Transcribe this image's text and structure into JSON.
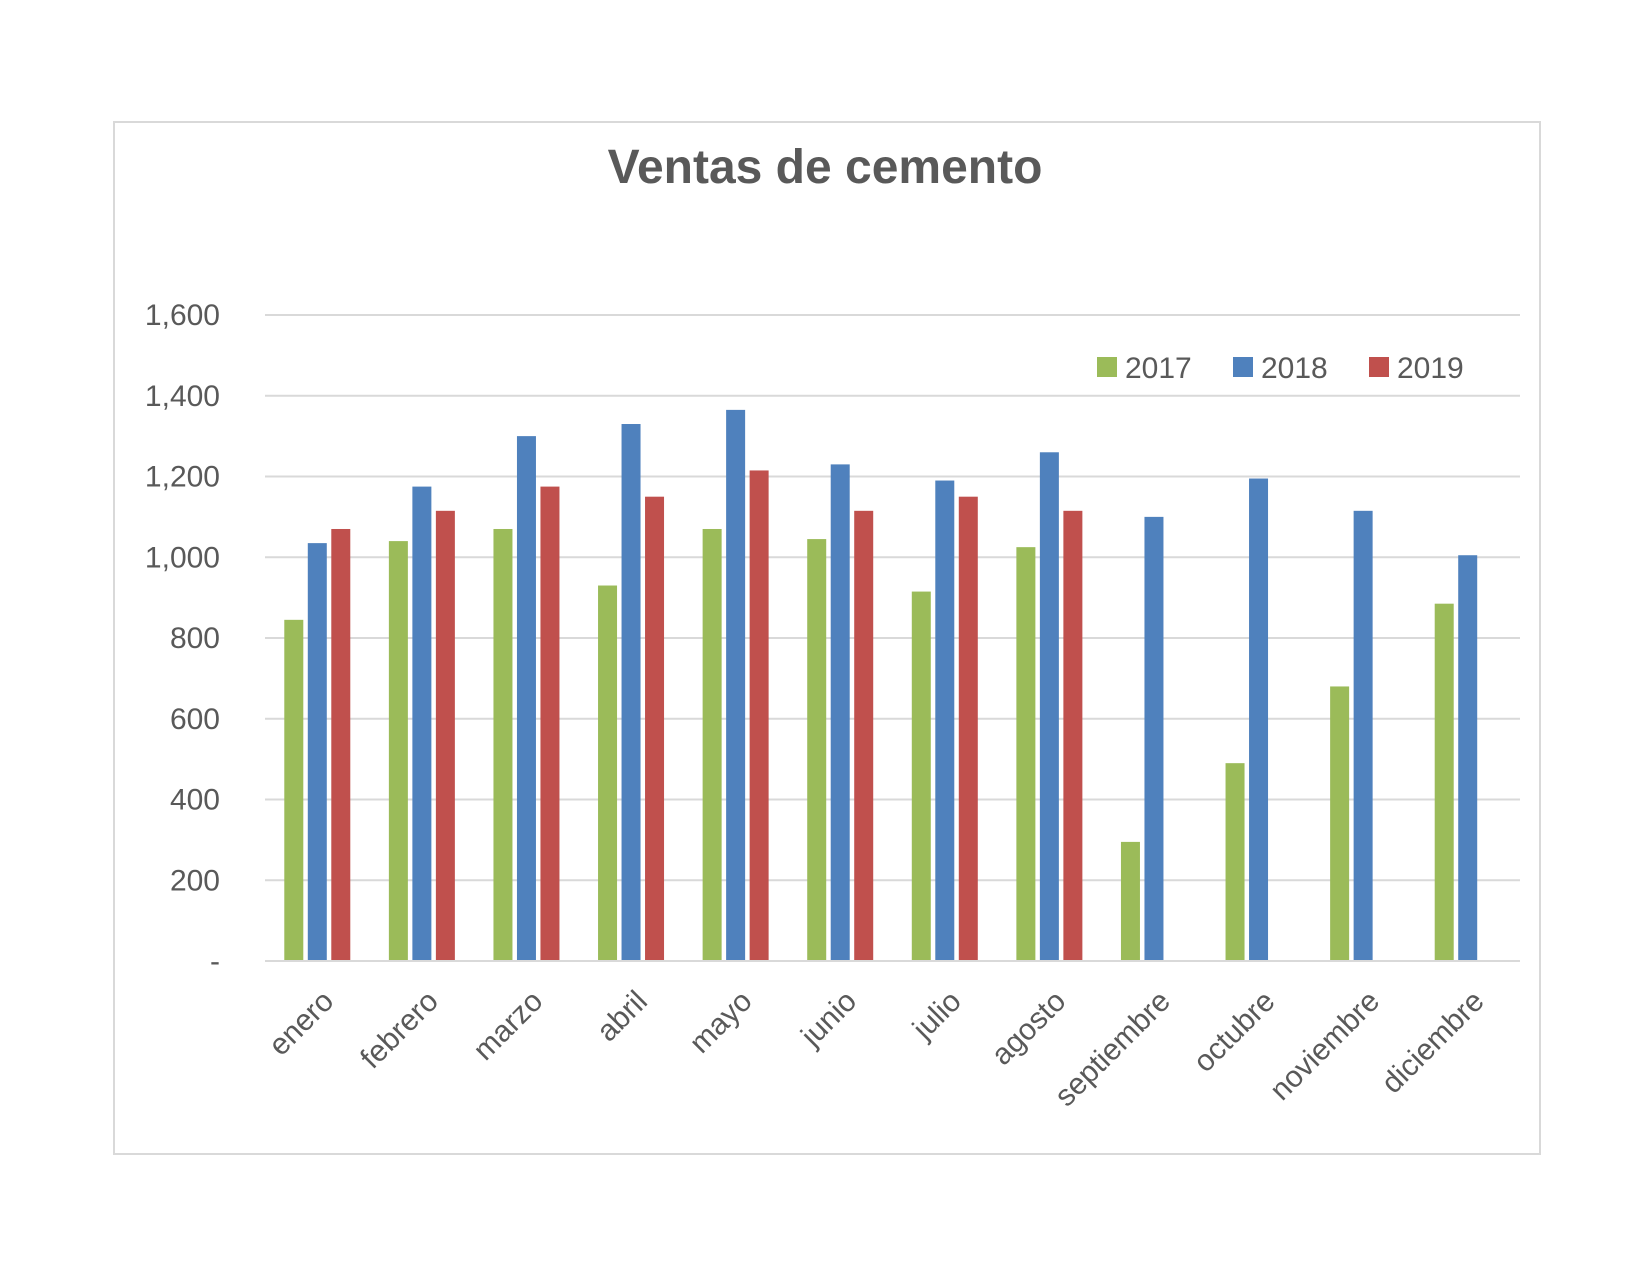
{
  "chart_data": {
    "type": "bar",
    "title": "Ventas de cemento",
    "xlabel": "",
    "ylabel": "",
    "categories": [
      "enero",
      "febrero",
      "marzo",
      "abril",
      "mayo",
      "junio",
      "julio",
      "agosto",
      "septiembre",
      "octubre",
      "noviembre",
      "diciembre"
    ],
    "series": [
      {
        "name": "2017",
        "color": "#9bbb59",
        "values": [
          845,
          1040,
          1070,
          930,
          1070,
          1045,
          915,
          1025,
          295,
          490,
          680,
          885
        ]
      },
      {
        "name": "2018",
        "color": "#4f81bd",
        "values": [
          1035,
          1175,
          1300,
          1330,
          1365,
          1230,
          1190,
          1260,
          1100,
          1195,
          1115,
          1005
        ]
      },
      {
        "name": "2019",
        "color": "#c0504d",
        "values": [
          1070,
          1115,
          1175,
          1150,
          1215,
          1115,
          1150,
          1115,
          null,
          null,
          null,
          null
        ]
      }
    ],
    "ylim": [
      0,
      1600
    ],
    "yticks": [
      0,
      200,
      400,
      600,
      800,
      1000,
      1200,
      1400,
      1600
    ],
    "ytick_labels": [
      "-",
      "200",
      "400",
      "600",
      "800",
      "1,000",
      "1,200",
      "1,400",
      "1,600"
    ],
    "grid": true,
    "legend_position": "top-right",
    "gridline_color": "#d9d9d9"
  }
}
